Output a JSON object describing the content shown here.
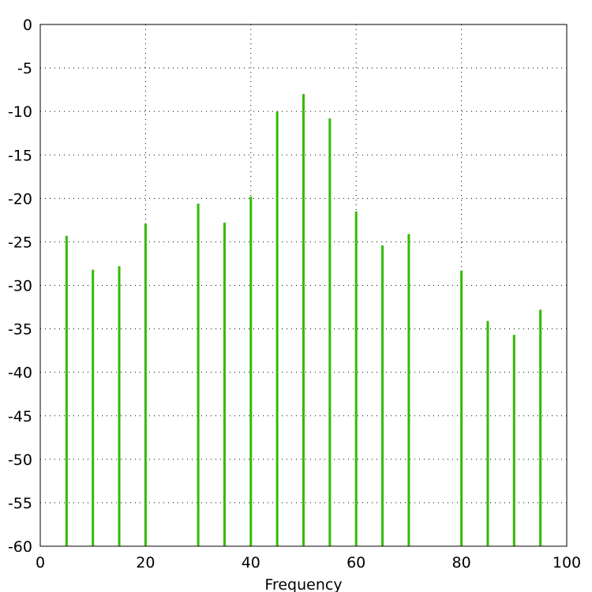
{
  "chart_data": {
    "type": "bar",
    "title": "",
    "xlabel": "Frequency",
    "ylabel": "",
    "xlim": [
      0,
      100
    ],
    "ylim": [
      -60,
      0
    ],
    "xticks": [
      0,
      20,
      40,
      60,
      80,
      100
    ],
    "yticks": [
      0,
      -5,
      -10,
      -15,
      -20,
      -25,
      -30,
      -35,
      -40,
      -45,
      -50,
      -55,
      -60
    ],
    "grid": true,
    "legend": "none",
    "color": "#33bb00",
    "series": [
      {
        "x": [
          5,
          10,
          15,
          20,
          30,
          35,
          40,
          45,
          50,
          55,
          60,
          65,
          70,
          80,
          85,
          90,
          95
        ],
        "values": [
          -24.3,
          -28.2,
          -27.8,
          -22.9,
          -20.6,
          -22.8,
          -19.8,
          -10.0,
          -8.0,
          -10.8,
          -21.5,
          -25.4,
          -24.1,
          -28.3,
          -34.1,
          -35.7,
          -32.8
        ]
      }
    ]
  }
}
